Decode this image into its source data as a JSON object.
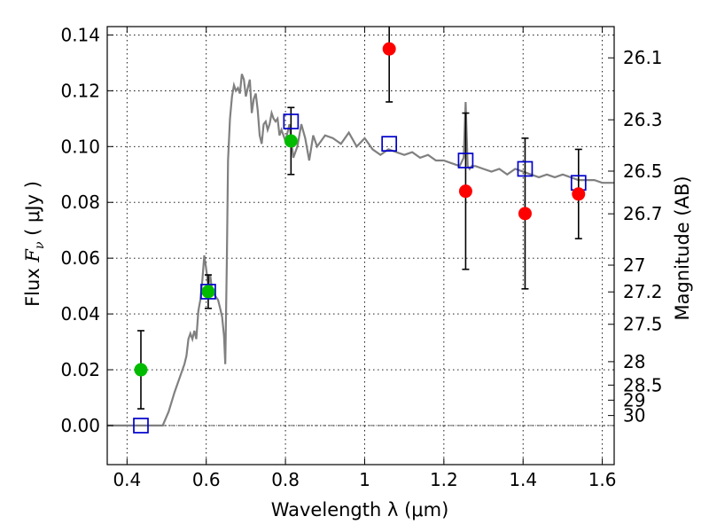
{
  "chart_data": {
    "type": "scatter",
    "xlabel": "Wavelength  λ (μm)",
    "ylabel": "Flux  Fν  ( μJy )",
    "ylabel_parts": {
      "prefix": "Flux  ",
      "symbol": "F",
      "subscript": "ν",
      "units": "  ( μJy )"
    },
    "ylabel_right": "Magnitude (AB)",
    "xlim": [
      0.35,
      1.63
    ],
    "ylim": [
      -0.014,
      0.143
    ],
    "grid": true,
    "x_ticks": [
      0.4,
      0.6,
      0.8,
      1.0,
      1.2,
      1.4,
      1.6
    ],
    "x_tick_labels": [
      "0.4",
      "0.6",
      "0.8",
      "1",
      "1.2",
      "1.4",
      "1.6"
    ],
    "y_ticks": [
      0.0,
      0.02,
      0.04,
      0.06,
      0.08,
      0.1,
      0.12,
      0.14
    ],
    "y_tick_labels": [
      "0.00",
      "0.02",
      "0.04",
      "0.06",
      "0.08",
      "0.10",
      "0.12",
      "0.14"
    ],
    "mag_ticks": [
      {
        "label": "26.1",
        "flux": 0.1318
      },
      {
        "label": "26.3",
        "flux": 0.1096
      },
      {
        "label": "26.5",
        "flux": 0.0912
      },
      {
        "label": "26.7",
        "flux": 0.0759
      },
      {
        "label": "27",
        "flux": 0.0575
      },
      {
        "label": "27.2",
        "flux": 0.0479
      },
      {
        "label": "27.5",
        "flux": 0.0363
      },
      {
        "label": "28",
        "flux": 0.0229
      },
      {
        "label": "28.5",
        "flux": 0.0145
      },
      {
        "label": "29",
        "flux": 0.0091
      },
      {
        "label": "30",
        "flux": 0.0036
      }
    ],
    "series": [
      {
        "kind": "model-spectrum",
        "color": "#808080",
        "x": [
          0.35,
          0.4,
          0.45,
          0.49,
          0.505,
          0.52,
          0.535,
          0.545,
          0.55,
          0.555,
          0.56,
          0.565,
          0.57,
          0.575,
          0.58,
          0.585,
          0.59,
          0.595,
          0.6,
          0.605,
          0.61,
          0.615,
          0.62,
          0.625,
          0.63,
          0.635,
          0.64,
          0.645,
          0.648,
          0.652,
          0.655,
          0.66,
          0.665,
          0.67,
          0.675,
          0.68,
          0.685,
          0.69,
          0.695,
          0.7,
          0.705,
          0.71,
          0.715,
          0.72,
          0.725,
          0.73,
          0.735,
          0.74,
          0.745,
          0.75,
          0.755,
          0.76,
          0.765,
          0.77,
          0.775,
          0.78,
          0.785,
          0.79,
          0.8,
          0.81,
          0.82,
          0.83,
          0.84,
          0.85,
          0.86,
          0.87,
          0.88,
          0.89,
          0.9,
          0.92,
          0.94,
          0.96,
          0.98,
          1.0,
          1.02,
          1.04,
          1.06,
          1.08,
          1.1,
          1.12,
          1.14,
          1.16,
          1.18,
          1.2,
          1.22,
          1.24,
          1.25,
          1.255,
          1.26,
          1.265,
          1.27,
          1.28,
          1.3,
          1.32,
          1.34,
          1.36,
          1.38,
          1.4,
          1.42,
          1.44,
          1.46,
          1.48,
          1.5,
          1.52,
          1.54,
          1.56,
          1.58,
          1.6,
          1.63
        ],
        "y": [
          0.0,
          0.0,
          0.0,
          0.0,
          0.005,
          0.012,
          0.018,
          0.022,
          0.025,
          0.031,
          0.033,
          0.031,
          0.034,
          0.031,
          0.041,
          0.045,
          0.052,
          0.061,
          0.056,
          0.05,
          0.054,
          0.048,
          0.047,
          0.046,
          0.045,
          0.042,
          0.039,
          0.032,
          0.022,
          0.06,
          0.095,
          0.11,
          0.118,
          0.122,
          0.12,
          0.121,
          0.119,
          0.126,
          0.124,
          0.118,
          0.121,
          0.124,
          0.112,
          0.117,
          0.119,
          0.113,
          0.104,
          0.101,
          0.108,
          0.109,
          0.106,
          0.108,
          0.112,
          0.11,
          0.109,
          0.11,
          0.104,
          0.106,
          0.102,
          0.108,
          0.096,
          0.1,
          0.108,
          0.103,
          0.095,
          0.104,
          0.1,
          0.102,
          0.104,
          0.103,
          0.101,
          0.105,
          0.1,
          0.103,
          0.099,
          0.097,
          0.099,
          0.098,
          0.097,
          0.098,
          0.096,
          0.097,
          0.095,
          0.095,
          0.094,
          0.093,
          0.096,
          0.116,
          0.093,
          0.092,
          0.093,
          0.093,
          0.092,
          0.091,
          0.092,
          0.09,
          0.092,
          0.091,
          0.09,
          0.089,
          0.09,
          0.089,
          0.09,
          0.089,
          0.088,
          0.088,
          0.088,
          0.087,
          0.087
        ]
      },
      {
        "kind": "green-points",
        "color": "#00bb00",
        "points": [
          {
            "x": 0.435,
            "y": 0.02,
            "err": 0.014
          },
          {
            "x": 0.605,
            "y": 0.048,
            "err": 0.006
          },
          {
            "x": 0.814,
            "y": 0.102,
            "err": 0.012
          }
        ]
      },
      {
        "kind": "red-points",
        "color": "#ff0000",
        "points": [
          {
            "x": 1.062,
            "y": 0.135,
            "err": 0.019
          },
          {
            "x": 1.255,
            "y": 0.084,
            "err": 0.028
          },
          {
            "x": 1.405,
            "y": 0.076,
            "err": 0.027
          },
          {
            "x": 1.54,
            "y": 0.083,
            "err": 0.016
          }
        ]
      },
      {
        "kind": "model-bandpass-squares",
        "color": "#0000cc",
        "points": [
          {
            "x": 0.435,
            "y": 0.0
          },
          {
            "x": 0.605,
            "y": 0.048
          },
          {
            "x": 0.814,
            "y": 0.109
          },
          {
            "x": 1.062,
            "y": 0.101
          },
          {
            "x": 1.255,
            "y": 0.095
          },
          {
            "x": 1.405,
            "y": 0.092
          },
          {
            "x": 1.54,
            "y": 0.087
          }
        ]
      }
    ]
  }
}
